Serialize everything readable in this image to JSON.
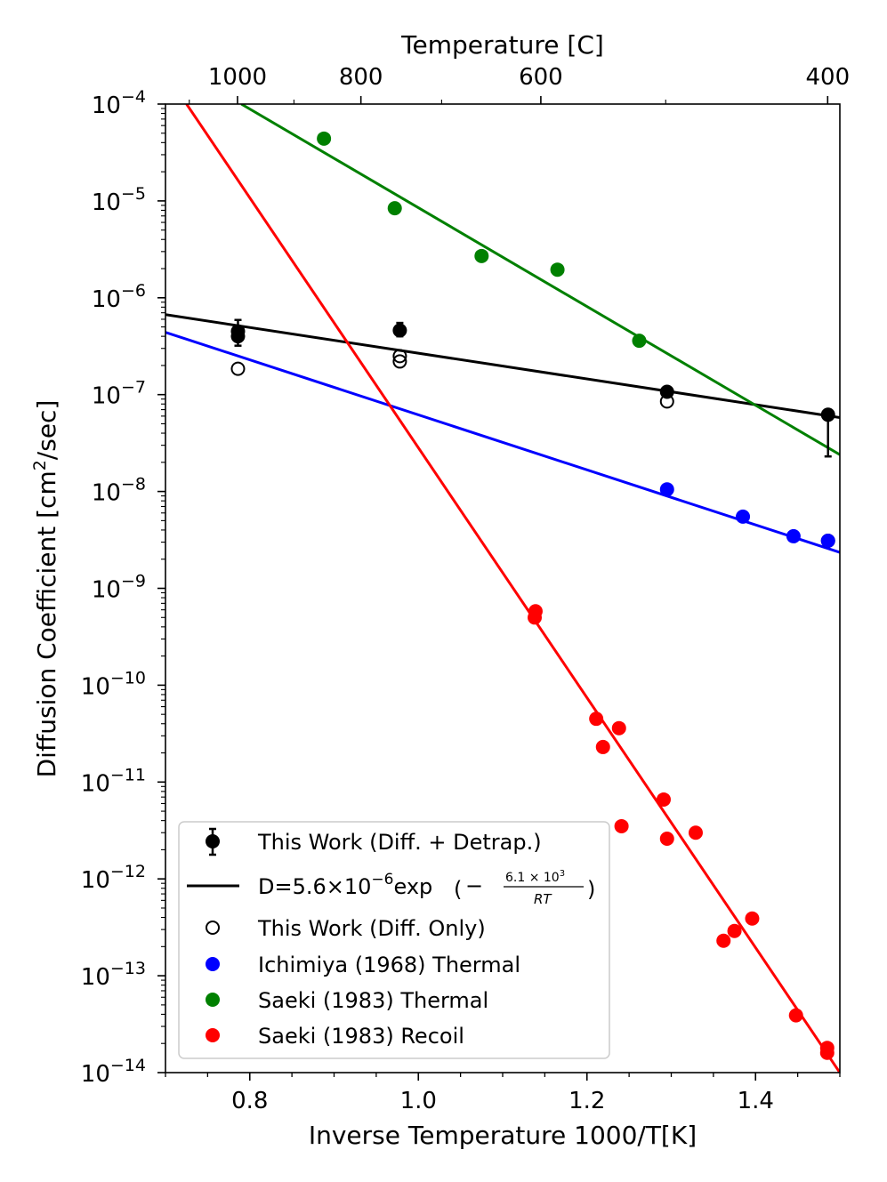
{
  "chart_data": {
    "type": "scatter",
    "xlabel": "Inverse Temperature 1000/T[K]",
    "ylabel_main": "Diffusion Coefficient [cm",
    "ylabel_sup": "2",
    "ylabel_tail": "/sec]",
    "top_xlabel": "Temperature [C]",
    "xlim": [
      0.7,
      1.5
    ],
    "ylim_log10": [
      -14,
      -4
    ],
    "x_ticks": [
      {
        "value": 0.8,
        "label": "0.8"
      },
      {
        "value": 1.0,
        "label": "1.0"
      },
      {
        "value": 1.2,
        "label": "1.2"
      },
      {
        "value": 1.4,
        "label": "1.4"
      }
    ],
    "y_ticks": [
      {
        "exp": -4,
        "base": "10",
        "sup": "−4"
      },
      {
        "exp": -5,
        "base": "10",
        "sup": "−5"
      },
      {
        "exp": -6,
        "base": "10",
        "sup": "−6"
      },
      {
        "exp": -7,
        "base": "10",
        "sup": "−7"
      },
      {
        "exp": -8,
        "base": "10",
        "sup": "−8"
      },
      {
        "exp": -9,
        "base": "10",
        "sup": "−9"
      },
      {
        "exp": -10,
        "base": "10",
        "sup": "−10"
      },
      {
        "exp": -11,
        "base": "10",
        "sup": "−11"
      },
      {
        "exp": -12,
        "base": "10",
        "sup": "−12"
      },
      {
        "exp": -13,
        "base": "10",
        "sup": "−13"
      },
      {
        "exp": -14,
        "base": "10",
        "sup": "−14"
      }
    ],
    "top_ticks": [
      {
        "celsius": 1000,
        "label": "1000"
      },
      {
        "celsius": 800,
        "label": "800"
      },
      {
        "celsius": 600,
        "label": "600"
      },
      {
        "celsius": 400,
        "label": "400"
      }
    ],
    "top_minor_ticks_celsius": [
      1100,
      900,
      700,
      500
    ],
    "series": [
      {
        "name": "This Work (Diff. + Detrap.)",
        "color": "#000000",
        "marker": "filled",
        "points": [
          {
            "x": 0.786,
            "y": 4e-07,
            "ylow": 3.2e-07,
            "yhigh": 5.9e-07
          },
          {
            "x": 0.786,
            "y": 4.5e-07,
            "ylow": 4e-07,
            "yhigh": 5e-07
          },
          {
            "x": 0.978,
            "y": 4.6e-07,
            "ylow": 4e-07,
            "yhigh": 5.5e-07
          },
          {
            "x": 1.295,
            "y": 1.07e-07,
            "ylow": 9.5e-08,
            "yhigh": 1.2e-07
          },
          {
            "x": 1.486,
            "y": 6.2e-08,
            "ylow": 2.3e-08,
            "yhigh": 7e-08
          }
        ]
      },
      {
        "name": "This Work (Diff. Only)",
        "color": "#000000",
        "marker": "open",
        "points": [
          {
            "x": 0.786,
            "y": 1.85e-07
          },
          {
            "x": 0.978,
            "y": 2.2e-07
          },
          {
            "x": 0.978,
            "y": 2.5e-07
          },
          {
            "x": 1.295,
            "y": 8.5e-08
          },
          {
            "x": 1.486,
            "y": 3.1e-09
          }
        ]
      },
      {
        "name": "Ichimiya (1968) Thermal",
        "color": "#0000ff",
        "marker": "filled",
        "points": [
          {
            "x": 1.295,
            "y": 1.05e-08
          },
          {
            "x": 1.385,
            "y": 5.5e-09
          },
          {
            "x": 1.445,
            "y": 3.45e-09
          },
          {
            "x": 1.486,
            "y": 3.1e-09
          }
        ]
      },
      {
        "name": "Saeki (1983) Thermal",
        "color": "#008000",
        "marker": "filled",
        "points": [
          {
            "x": 0.888,
            "y": 4.4e-05
          },
          {
            "x": 0.972,
            "y": 8.4e-06
          },
          {
            "x": 1.075,
            "y": 2.7e-06
          },
          {
            "x": 1.165,
            "y": 1.95e-06
          },
          {
            "x": 1.262,
            "y": 3.6e-07
          }
        ]
      },
      {
        "name": "Saeki (1983) Recoil",
        "color": "#ff0000",
        "marker": "filled",
        "points": [
          {
            "x": 1.139,
            "y": 5.8e-10
          },
          {
            "x": 1.138,
            "y": 5e-10
          },
          {
            "x": 1.211,
            "y": 4.5e-11
          },
          {
            "x": 1.238,
            "y": 3.6e-11
          },
          {
            "x": 1.219,
            "y": 2.3e-11
          },
          {
            "x": 1.291,
            "y": 6.6e-12
          },
          {
            "x": 1.241,
            "y": 3.5e-12
          },
          {
            "x": 1.295,
            "y": 2.6e-12
          },
          {
            "x": 1.329,
            "y": 3e-12
          },
          {
            "x": 1.396,
            "y": 3.9e-13
          },
          {
            "x": 1.375,
            "y": 2.9e-13
          },
          {
            "x": 1.362,
            "y": 2.3e-13
          },
          {
            "x": 1.448,
            "y": 3.9e-14
          },
          {
            "x": 1.485,
            "y": 1.8e-14
          },
          {
            "x": 1.485,
            "y": 1.6e-14
          }
        ]
      }
    ],
    "fit_lines": [
      {
        "name": "D fit (This Work)",
        "color": "#000000",
        "from": [
          0.7,
          6.7e-07
        ],
        "to": [
          1.5,
          5.8e-08
        ]
      },
      {
        "name": "Ichimiya fit",
        "color": "#0000ff",
        "from": [
          0.7,
          4.4e-07
        ],
        "to": [
          1.5,
          2.35e-09
        ]
      },
      {
        "name": "Saeki Thermal fit",
        "color": "#008000",
        "from": [
          0.79,
          0.0001
        ],
        "to": [
          1.5,
          2.4e-08
        ]
      },
      {
        "name": "Saeki Recoil fit",
        "color": "#ff0000",
        "from": [
          0.725,
          0.0001
        ],
        "to": [
          1.5,
          1e-14
        ]
      }
    ],
    "legend": {
      "placement": "lower-left",
      "entries": [
        {
          "label": "This Work (Diff. + Detrap.)",
          "kind": "errorbar",
          "color": "#000000"
        },
        {
          "label": "D=5.6×10",
          "sup": "−6",
          "tail": "exp",
          "frac_num": "6.1 × 10",
          "frac_num_sup": "3",
          "frac_den": "RT",
          "kind": "line",
          "color": "#000000"
        },
        {
          "label": "This Work (Diff. Only)",
          "kind": "open",
          "color": "#000000"
        },
        {
          "label": "Ichimiya (1968) Thermal",
          "kind": "filled",
          "color": "#0000ff"
        },
        {
          "label": "Saeki (1983) Thermal",
          "kind": "filled",
          "color": "#008000"
        },
        {
          "label": "Saeki (1983) Recoil",
          "kind": "filled",
          "color": "#ff0000"
        }
      ]
    }
  }
}
